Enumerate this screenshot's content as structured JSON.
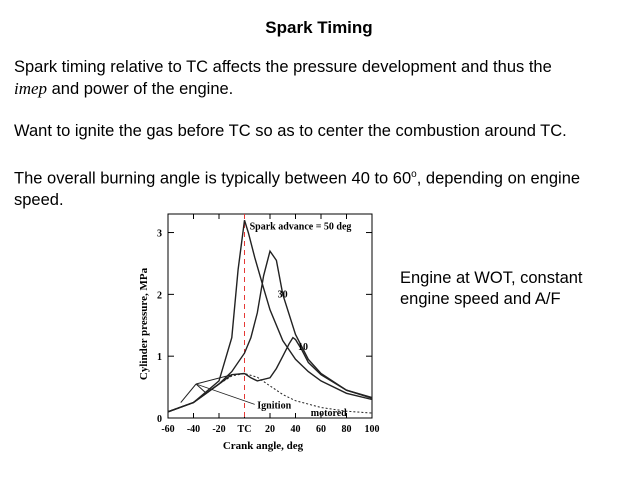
{
  "slide": {
    "title": "Spark Timing",
    "para1_a": "Spark timing relative to TC affects the pressure development and thus the",
    "para1_em": "imep",
    "para1_b": " and power of the engine.",
    "para2": "Want to ignite the gas before TC so as to center the combustion around TC.",
    "para3_a": "The overall burning angle is typically between 40 to 60",
    "para3_sup": "o",
    "para3_b": ", depending on engine speed.",
    "side_line1": "Engine at WOT, constant",
    "side_line2": "engine speed and A/F"
  },
  "chart_data": {
    "type": "line",
    "xlabel": "Crank angle, deg",
    "ylabel": "Cylinder pressure, MPa",
    "x_ticks": [
      "-60",
      "-40",
      "-20",
      "TC",
      "20",
      "40",
      "60",
      "80",
      "100"
    ],
    "y_ticks": [
      "0",
      "1",
      "2",
      "3"
    ],
    "xlim": [
      -60,
      100
    ],
    "ylim": [
      0,
      3.3
    ],
    "series": [
      {
        "name": "Spark advance = 50 deg",
        "x": [
          -60,
          -40,
          -20,
          -10,
          -5,
          0,
          3,
          8,
          15,
          20,
          30,
          40,
          50,
          60,
          80,
          100
        ],
        "y": [
          0.1,
          0.25,
          0.6,
          1.3,
          2.4,
          3.2,
          3.0,
          2.6,
          2.1,
          1.75,
          1.25,
          0.95,
          0.75,
          0.6,
          0.4,
          0.3
        ]
      },
      {
        "name": "30",
        "x": [
          -60,
          -40,
          -30,
          -20,
          -10,
          0,
          5,
          10,
          15,
          20,
          25,
          30,
          40,
          50,
          60,
          80,
          100
        ],
        "y": [
          0.1,
          0.25,
          0.4,
          0.55,
          0.75,
          1.05,
          1.3,
          1.7,
          2.3,
          2.7,
          2.55,
          2.0,
          1.35,
          0.95,
          0.72,
          0.45,
          0.32
        ]
      },
      {
        "name": "10",
        "x": [
          -60,
          -40,
          -20,
          -10,
          0,
          5,
          10,
          20,
          25,
          30,
          35,
          38,
          40,
          45,
          50,
          60,
          80,
          100
        ],
        "y": [
          0.1,
          0.25,
          0.55,
          0.7,
          0.72,
          0.65,
          0.6,
          0.65,
          0.8,
          1.0,
          1.2,
          1.3,
          1.27,
          1.1,
          0.9,
          0.7,
          0.45,
          0.33
        ]
      },
      {
        "name": "motored",
        "x": [
          -60,
          -40,
          -20,
          -10,
          0,
          10,
          20,
          30,
          40,
          60,
          80,
          100
        ],
        "y": [
          0.1,
          0.25,
          0.55,
          0.68,
          0.72,
          0.66,
          0.52,
          0.38,
          0.28,
          0.17,
          0.11,
          0.08
        ]
      }
    ],
    "annotations": [
      "Spark advance = 50 deg",
      "30",
      "10",
      "Ignition",
      "motored"
    ]
  }
}
